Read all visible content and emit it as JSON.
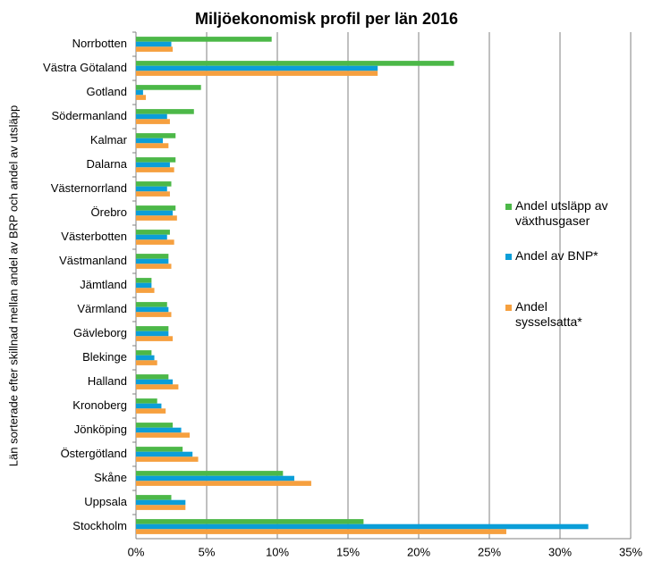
{
  "chart_data": {
    "type": "barh",
    "title": "Miljöekonomisk profil per län 2016",
    "ylabel": "Län sorterade efter skillnad mellan andel av BRP och andel av utsläpp",
    "categories": [
      "Norrbotten",
      "Västra Götaland",
      "Gotland",
      "Södermanland",
      "Kalmar",
      "Dalarna",
      "Västernorrland",
      "Örebro",
      "Västerbotten",
      "Västmanland",
      "Jämtland",
      "Värmland",
      "Gävleborg",
      "Blekinge",
      "Halland",
      "Kronoberg",
      "Jönköping",
      "Östergötland",
      "Skåne",
      "Uppsala",
      "Stockholm"
    ],
    "series": [
      {
        "name": "Andel utsläpp av växthusgaser",
        "color": "#4cb848",
        "values": [
          9.6,
          22.5,
          4.6,
          4.1,
          2.8,
          2.8,
          2.5,
          2.8,
          2.4,
          2.3,
          1.1,
          2.2,
          2.3,
          1.1,
          2.3,
          1.5,
          2.6,
          3.3,
          10.4,
          2.5,
          16.1
        ]
      },
      {
        "name": "Andel av BNP*",
        "color": "#0b9ed8",
        "values": [
          2.5,
          17.1,
          0.5,
          2.2,
          1.9,
          2.4,
          2.2,
          2.6,
          2.2,
          2.3,
          1.1,
          2.3,
          2.3,
          1.3,
          2.6,
          1.8,
          3.2,
          4.0,
          11.2,
          3.5,
          32.0
        ]
      },
      {
        "name": "Andel sysselsatta*",
        "color": "#f6a03f",
        "values": [
          2.6,
          17.1,
          0.7,
          2.4,
          2.3,
          2.7,
          2.4,
          2.9,
          2.7,
          2.5,
          1.3,
          2.5,
          2.6,
          1.5,
          3.0,
          2.1,
          3.8,
          4.4,
          12.4,
          3.5,
          26.2
        ]
      }
    ],
    "xlim": [
      0,
      35
    ],
    "xticks": [
      {
        "value": 0,
        "label": "0%"
      },
      {
        "value": 5,
        "label": "5%"
      },
      {
        "value": 10,
        "label": "10%"
      },
      {
        "value": 15,
        "label": "15%"
      },
      {
        "value": 20,
        "label": "20%"
      },
      {
        "value": 25,
        "label": "25%"
      },
      {
        "value": 30,
        "label": "30%"
      },
      {
        "value": 35,
        "label": "35%"
      }
    ],
    "grid": true,
    "legend": "right"
  }
}
